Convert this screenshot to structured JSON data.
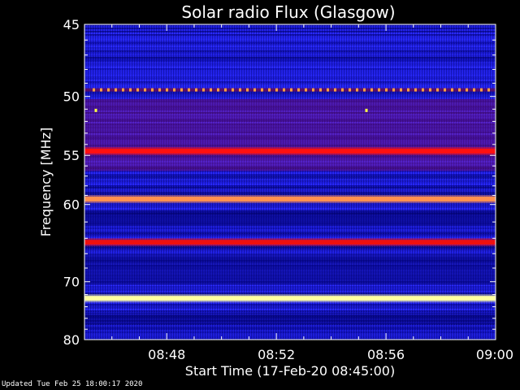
{
  "chart_data": {
    "type": "heatmap",
    "title": "Solar radio Flux (Glasgow)",
    "xlabel": "Start Time (17-Feb-20 08:45:00)",
    "ylabel": "Frequency [MHz]",
    "x_range": [
      "08:45",
      "09:00"
    ],
    "y_range": [
      45,
      80
    ],
    "x_ticks": [
      "08:48",
      "08:52",
      "08:56",
      "09:00"
    ],
    "y_ticks": [
      45,
      50,
      55,
      60,
      70,
      80
    ],
    "y_scale": "reciprocal",
    "grid": false,
    "colormap": [
      "#0000b0",
      "#2020ff",
      "#ff0000",
      "#ffa040",
      "#ffff80"
    ],
    "bands": [
      {
        "freq": 49.5,
        "color": "#ffa040",
        "pattern": "dashed"
      },
      {
        "freq": 54.6,
        "color": "#ff1010",
        "pattern": "solid"
      },
      {
        "freq": 59.4,
        "color": "#ff9050",
        "pattern": "solid"
      },
      {
        "freq": 64.5,
        "color": "#ee1010",
        "pattern": "solid"
      },
      {
        "freq": 72.6,
        "color": "#ffffa0",
        "pattern": "solid"
      }
    ]
  },
  "footer": "Updated Tue Feb 25 18:00:17 2020"
}
